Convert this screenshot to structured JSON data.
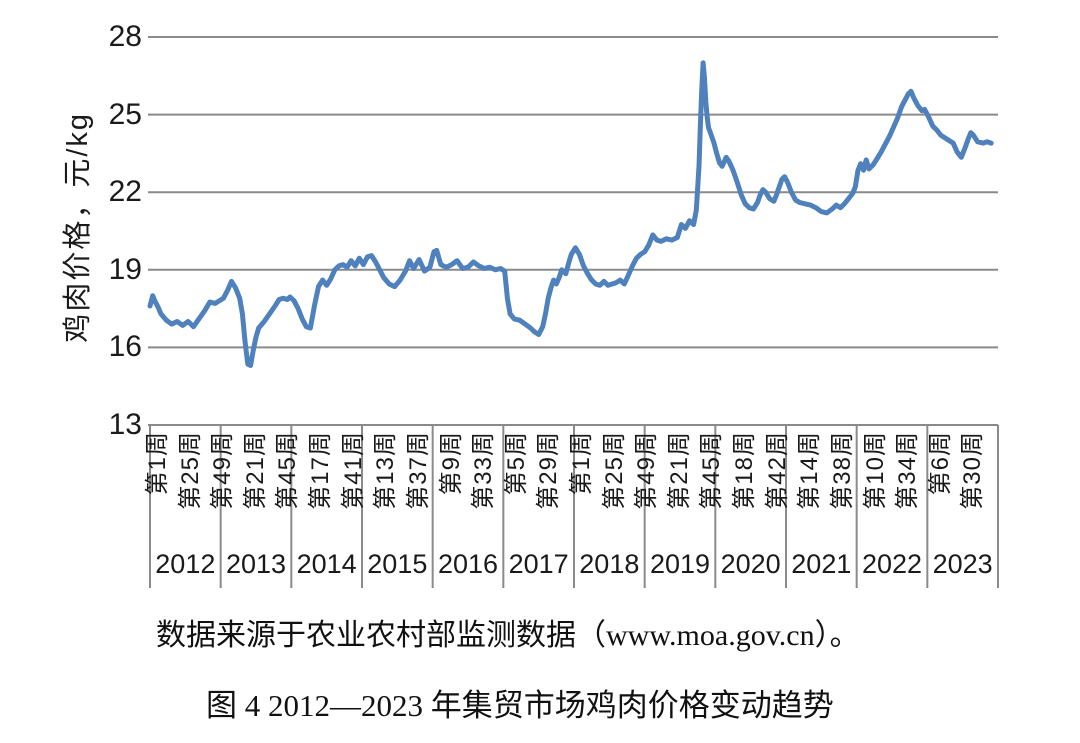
{
  "page": {
    "background": "#ffffff"
  },
  "chart_data": {
    "type": "line",
    "title": "图 4 2012—2023 年集贸市场鸡肉价格变动趋势",
    "source_note": "数据来源于农业农村部监测数据（www.moa.gov.cn）。",
    "ylabel": "鸡肉价格，元/kg",
    "ylim": [
      13,
      28
    ],
    "yticks": [
      28,
      25,
      22,
      19,
      16,
      13
    ],
    "grid": true,
    "legend_position": "none",
    "line_color": "#4F81BD",
    "gridline_color": "#8a8a8a",
    "x_axis": {
      "unit": "周 (week)",
      "weeks_per_year": 52,
      "total_weeks": 624,
      "tick_interval_weeks": 24,
      "week_tick_labels": [
        "第1周",
        "第25周",
        "第49周",
        "第21周",
        "第45周",
        "第17周",
        "第41周",
        "第13周",
        "第37周",
        "第9周",
        "第33周",
        "第5周",
        "第29周",
        "第1周",
        "第25周",
        "第49周",
        "第21周",
        "第45周",
        "第18周",
        "第42周",
        "第14周",
        "第38周",
        "第10周",
        "第34周",
        "第6周",
        "第30周"
      ],
      "year_labels": [
        "2012",
        "2013",
        "2014",
        "2015",
        "2016",
        "2017",
        "2018",
        "2019",
        "2020",
        "2021",
        "2022",
        "2023"
      ]
    },
    "series": [
      {
        "name": "集贸市场鸡肉价格（元/kg）",
        "color": "#4F81BD",
        "points_format": "[cumulative_week_since_2012w1, price_yuan_per_kg]",
        "points": [
          [
            0,
            17.6
          ],
          [
            2,
            18.0
          ],
          [
            4,
            17.75
          ],
          [
            6,
            17.55
          ],
          [
            8,
            17.3
          ],
          [
            12,
            17.05
          ],
          [
            16,
            16.9
          ],
          [
            20,
            17.0
          ],
          [
            24,
            16.85
          ],
          [
            28,
            17.0
          ],
          [
            32,
            16.8
          ],
          [
            36,
            17.1
          ],
          [
            40,
            17.4
          ],
          [
            44,
            17.75
          ],
          [
            48,
            17.7
          ],
          [
            51,
            17.8
          ],
          [
            54,
            17.9
          ],
          [
            57,
            18.2
          ],
          [
            60,
            18.55
          ],
          [
            63,
            18.3
          ],
          [
            66,
            17.9
          ],
          [
            68,
            17.3
          ],
          [
            70,
            16.2
          ],
          [
            72,
            15.35
          ],
          [
            74,
            15.3
          ],
          [
            76,
            15.9
          ],
          [
            78,
            16.4
          ],
          [
            80,
            16.75
          ],
          [
            84,
            17.0
          ],
          [
            88,
            17.3
          ],
          [
            92,
            17.6
          ],
          [
            95,
            17.85
          ],
          [
            98,
            17.9
          ],
          [
            101,
            17.85
          ],
          [
            103,
            17.95
          ],
          [
            106,
            17.8
          ],
          [
            109,
            17.5
          ],
          [
            112,
            17.1
          ],
          [
            115,
            16.8
          ],
          [
            118,
            16.75
          ],
          [
            121,
            17.6
          ],
          [
            124,
            18.35
          ],
          [
            127,
            18.6
          ],
          [
            130,
            18.4
          ],
          [
            133,
            18.65
          ],
          [
            136,
            19.0
          ],
          [
            139,
            19.15
          ],
          [
            142,
            19.2
          ],
          [
            145,
            19.1
          ],
          [
            148,
            19.35
          ],
          [
            151,
            19.15
          ],
          [
            154,
            19.45
          ],
          [
            157,
            19.2
          ],
          [
            160,
            19.5
          ],
          [
            163,
            19.55
          ],
          [
            166,
            19.3
          ],
          [
            169,
            19.0
          ],
          [
            172,
            18.7
          ],
          [
            176,
            18.45
          ],
          [
            180,
            18.35
          ],
          [
            184,
            18.6
          ],
          [
            188,
            18.95
          ],
          [
            191,
            19.35
          ],
          [
            194,
            19.05
          ],
          [
            198,
            19.4
          ],
          [
            202,
            18.95
          ],
          [
            206,
            19.1
          ],
          [
            209,
            19.7
          ],
          [
            211,
            19.75
          ],
          [
            214,
            19.2
          ],
          [
            218,
            19.1
          ],
          [
            222,
            19.2
          ],
          [
            226,
            19.35
          ],
          [
            230,
            19.05
          ],
          [
            234,
            19.1
          ],
          [
            238,
            19.3
          ],
          [
            242,
            19.15
          ],
          [
            246,
            19.05
          ],
          [
            250,
            19.1
          ],
          [
            254,
            19.0
          ],
          [
            258,
            19.05
          ],
          [
            261,
            18.95
          ],
          [
            263,
            17.9
          ],
          [
            265,
            17.3
          ],
          [
            268,
            17.1
          ],
          [
            272,
            17.05
          ],
          [
            276,
            16.9
          ],
          [
            280,
            16.75
          ],
          [
            283,
            16.6
          ],
          [
            286,
            16.5
          ],
          [
            289,
            16.8
          ],
          [
            291,
            17.3
          ],
          [
            293,
            17.9
          ],
          [
            295,
            18.3
          ],
          [
            297,
            18.6
          ],
          [
            299,
            18.45
          ],
          [
            301,
            18.7
          ],
          [
            303,
            19.0
          ],
          [
            306,
            18.85
          ],
          [
            308,
            19.25
          ],
          [
            310,
            19.6
          ],
          [
            313,
            19.85
          ],
          [
            316,
            19.6
          ],
          [
            319,
            19.15
          ],
          [
            322,
            18.85
          ],
          [
            325,
            18.6
          ],
          [
            328,
            18.45
          ],
          [
            331,
            18.4
          ],
          [
            334,
            18.55
          ],
          [
            337,
            18.4
          ],
          [
            340,
            18.45
          ],
          [
            343,
            18.5
          ],
          [
            346,
            18.6
          ],
          [
            349,
            18.45
          ],
          [
            352,
            18.8
          ],
          [
            355,
            19.15
          ],
          [
            358,
            19.45
          ],
          [
            361,
            19.6
          ],
          [
            364,
            19.7
          ],
          [
            367,
            19.95
          ],
          [
            370,
            20.35
          ],
          [
            373,
            20.15
          ],
          [
            376,
            20.1
          ],
          [
            380,
            20.2
          ],
          [
            384,
            20.15
          ],
          [
            388,
            20.25
          ],
          [
            391,
            20.75
          ],
          [
            394,
            20.6
          ],
          [
            397,
            20.9
          ],
          [
            400,
            20.75
          ],
          [
            402,
            21.3
          ],
          [
            404,
            23.0
          ],
          [
            405,
            24.6
          ],
          [
            406,
            25.9
          ],
          [
            407,
            27.0
          ],
          [
            408,
            26.4
          ],
          [
            409,
            25.5
          ],
          [
            410,
            24.9
          ],
          [
            411,
            24.5
          ],
          [
            413,
            24.2
          ],
          [
            415,
            23.9
          ],
          [
            417,
            23.5
          ],
          [
            419,
            23.15
          ],
          [
            421,
            23.0
          ],
          [
            424,
            23.35
          ],
          [
            426,
            23.2
          ],
          [
            429,
            22.85
          ],
          [
            432,
            22.4
          ],
          [
            435,
            21.9
          ],
          [
            438,
            21.55
          ],
          [
            441,
            21.4
          ],
          [
            444,
            21.35
          ],
          [
            447,
            21.6
          ],
          [
            449,
            21.9
          ],
          [
            451,
            22.1
          ],
          [
            453,
            22.0
          ],
          [
            456,
            21.75
          ],
          [
            459,
            21.65
          ],
          [
            461,
            21.9
          ],
          [
            463,
            22.2
          ],
          [
            465,
            22.5
          ],
          [
            467,
            22.6
          ],
          [
            469,
            22.4
          ],
          [
            472,
            22.0
          ],
          [
            475,
            21.7
          ],
          [
            478,
            21.6
          ],
          [
            482,
            21.55
          ],
          [
            486,
            21.5
          ],
          [
            490,
            21.4
          ],
          [
            494,
            21.25
          ],
          [
            498,
            21.2
          ],
          [
            502,
            21.35
          ],
          [
            505,
            21.5
          ],
          [
            508,
            21.4
          ],
          [
            511,
            21.55
          ],
          [
            514,
            21.75
          ],
          [
            517,
            21.95
          ],
          [
            519,
            22.2
          ],
          [
            521,
            22.85
          ],
          [
            523,
            23.1
          ],
          [
            525,
            22.85
          ],
          [
            527,
            23.25
          ],
          [
            529,
            22.9
          ],
          [
            532,
            23.05
          ],
          [
            535,
            23.3
          ],
          [
            538,
            23.55
          ],
          [
            541,
            23.85
          ],
          [
            544,
            24.15
          ],
          [
            547,
            24.5
          ],
          [
            550,
            24.85
          ],
          [
            553,
            25.3
          ],
          [
            556,
            25.6
          ],
          [
            558,
            25.8
          ],
          [
            560,
            25.9
          ],
          [
            562,
            25.65
          ],
          [
            565,
            25.35
          ],
          [
            568,
            25.15
          ],
          [
            570,
            25.2
          ],
          [
            573,
            24.9
          ],
          [
            576,
            24.55
          ],
          [
            579,
            24.4
          ],
          [
            582,
            24.2
          ],
          [
            585,
            24.1
          ],
          [
            588,
            24.0
          ],
          [
            591,
            23.9
          ],
          [
            594,
            23.55
          ],
          [
            597,
            23.35
          ],
          [
            600,
            23.75
          ],
          [
            602,
            24.05
          ],
          [
            604,
            24.3
          ],
          [
            606,
            24.2
          ],
          [
            609,
            23.95
          ],
          [
            613,
            23.9
          ],
          [
            616,
            23.95
          ],
          [
            619,
            23.9
          ]
        ]
      }
    ]
  }
}
